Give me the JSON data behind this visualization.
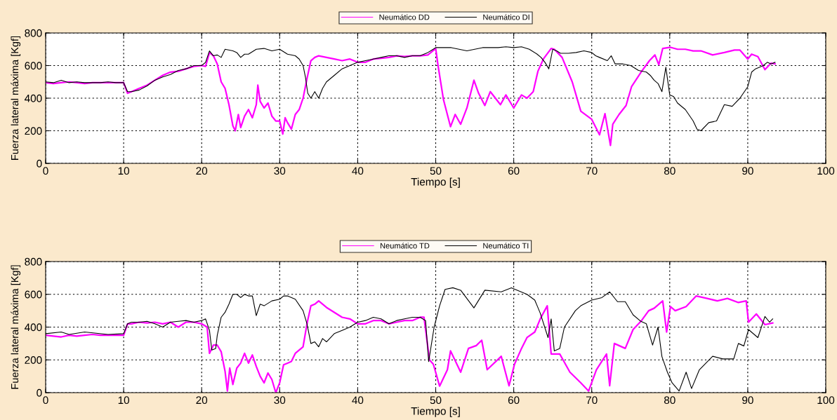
{
  "chart_data": [
    {
      "type": "line",
      "xlabel": "Tiempo [s]",
      "ylabel": "Fuerza lateral máxima [Kgf]",
      "xlim": [
        0,
        100
      ],
      "xticks": [
        0,
        10,
        20,
        30,
        40,
        50,
        60,
        70,
        80,
        90,
        100
      ],
      "ylim": [
        0,
        800
      ],
      "yticks": [
        0,
        200,
        400,
        600,
        800
      ],
      "grid": true,
      "legend": "top",
      "line_style": "solid",
      "series": [
        {
          "name": "Neumático DD",
          "color": "#ff00ff",
          "x": [
            0,
            1,
            2,
            3,
            4,
            5,
            6,
            7,
            8,
            9,
            10,
            10.5,
            11,
            12,
            13,
            14,
            15,
            16,
            17,
            18,
            19,
            20,
            20.5,
            21,
            21.5,
            22,
            22.5,
            23,
            23.5,
            24,
            24.3,
            24.7,
            25,
            25.5,
            26,
            26.5,
            27,
            27.2,
            27.5,
            28,
            28.5,
            29,
            29.5,
            30,
            30.4,
            30.7,
            31,
            31.5,
            32,
            32.5,
            33,
            33.5,
            34,
            34.5,
            35,
            36,
            37,
            38,
            39,
            40,
            41,
            42,
            43,
            44,
            45,
            46,
            47,
            48,
            49,
            50,
            50.3,
            51,
            51.9,
            52.5,
            53.2,
            54,
            54.9,
            55.5,
            56.3,
            57,
            58.3,
            59,
            60,
            61,
            61.7,
            62.5,
            63.1,
            63.8,
            64.8,
            65.2,
            66.2,
            67.5,
            68.6,
            70,
            71,
            71.7,
            72.4,
            72.7,
            73.5,
            74.4,
            75.1,
            76.4,
            77.4,
            78.1,
            78.6,
            79.1,
            80.1,
            81,
            82,
            83,
            84,
            85.5,
            87,
            88.3,
            89,
            90,
            90.5,
            91.3,
            92.2,
            93,
            93.5
          ],
          "values": [
            495,
            490,
            495,
            500,
            495,
            490,
            495,
            495,
            495,
            495,
            495,
            430,
            440,
            460,
            480,
            510,
            540,
            560,
            565,
            580,
            595,
            600,
            595,
            680,
            660,
            610,
            500,
            460,
            360,
            230,
            200,
            300,
            220,
            290,
            330,
            280,
            360,
            480,
            380,
            340,
            370,
            290,
            260,
            260,
            180,
            280,
            250,
            210,
            300,
            330,
            400,
            520,
            630,
            650,
            660,
            650,
            640,
            630,
            640,
            620,
            620,
            640,
            645,
            650,
            660,
            655,
            660,
            660,
            665,
            705,
            600,
            390,
            225,
            300,
            240,
            340,
            510,
            430,
            355,
            440,
            360,
            420,
            340,
            420,
            400,
            440,
            565,
            640,
            705,
            700,
            650,
            500,
            320,
            270,
            175,
            305,
            110,
            240,
            300,
            355,
            470,
            565,
            630,
            665,
            605,
            705,
            712,
            700,
            700,
            690,
            690,
            665,
            680,
            695,
            695,
            640,
            670,
            655,
            575,
            615,
            610
          ]
        },
        {
          "name": "Neumático DI",
          "color": "#000000",
          "x": [
            0,
            1,
            2,
            3,
            4,
            5,
            6,
            7,
            8,
            9,
            10,
            10.5,
            11,
            12,
            13,
            14,
            15,
            16,
            17,
            18,
            19,
            20,
            20.5,
            21,
            21.5,
            22,
            22.5,
            23,
            24,
            24.5,
            25,
            25.5,
            26,
            27,
            28,
            29,
            30,
            31,
            32,
            32.5,
            33,
            33.3,
            33.6,
            34,
            34.5,
            35,
            35.5,
            36,
            37,
            38,
            39,
            40,
            41,
            42,
            43,
            44,
            45,
            46,
            47,
            48,
            49,
            50,
            51,
            52,
            53,
            54,
            55,
            56,
            57,
            58,
            59,
            60,
            61,
            62,
            63,
            63.5,
            64,
            64.5,
            65,
            65.5,
            66,
            67,
            68,
            69,
            70,
            70.5,
            71,
            72,
            72.5,
            73,
            74,
            75,
            76,
            77,
            77.5,
            78,
            78.5,
            79,
            79.5,
            80,
            80.5,
            81,
            82,
            83,
            83.5,
            84,
            85,
            86,
            87,
            88,
            89,
            90,
            90.5,
            91,
            92,
            92.5,
            93,
            93.5
          ],
          "values": [
            500,
            495,
            510,
            495,
            500,
            495,
            495,
            495,
            500,
            495,
            495,
            440,
            440,
            450,
            475,
            510,
            530,
            545,
            570,
            580,
            600,
            600,
            620,
            690,
            660,
            665,
            650,
            700,
            690,
            680,
            650,
            670,
            670,
            700,
            705,
            690,
            700,
            670,
            660,
            640,
            600,
            530,
            430,
            400,
            440,
            400,
            460,
            500,
            540,
            580,
            600,
            620,
            630,
            640,
            650,
            660,
            660,
            650,
            660,
            660,
            680,
            710,
            710,
            710,
            700,
            690,
            700,
            710,
            710,
            710,
            715,
            710,
            715,
            700,
            670,
            650,
            620,
            580,
            700,
            690,
            675,
            675,
            680,
            690,
            680,
            660,
            650,
            630,
            660,
            610,
            610,
            600,
            570,
            560,
            540,
            510,
            490,
            440,
            590,
            420,
            410,
            370,
            330,
            260,
            210,
            200,
            250,
            260,
            360,
            350,
            400,
            470,
            560,
            580,
            600,
            620,
            610,
            620
          ]
        }
      ]
    },
    {
      "type": "line",
      "xlabel": "Tiempo [s]",
      "ylabel": "Fuerza lateral máxima [Kgf]",
      "xlim": [
        0,
        100
      ],
      "xticks": [
        0,
        10,
        20,
        30,
        40,
        50,
        60,
        70,
        80,
        90,
        100
      ],
      "ylim": [
        0,
        800
      ],
      "yticks": [
        0,
        200,
        400,
        600,
        800
      ],
      "grid": true,
      "legend": "top",
      "line_style": "solid",
      "series": [
        {
          "name": "Neumático TD",
          "color": "#ff00ff",
          "x": [
            0,
            1,
            2,
            3,
            4,
            5,
            6,
            7,
            8,
            9,
            10,
            10.5,
            11,
            12,
            13,
            14,
            15,
            16,
            17,
            18,
            19,
            20,
            20.7,
            21,
            21.5,
            22,
            22.5,
            23,
            23.3,
            23.6,
            24,
            24.5,
            25,
            25.5,
            26,
            26.5,
            27,
            27.5,
            28,
            28.5,
            29,
            29.5,
            30,
            30.5,
            31,
            31.5,
            32,
            33,
            33.5,
            34,
            34.5,
            35,
            36,
            37,
            38,
            39,
            40,
            41,
            42,
            43,
            44,
            45,
            46,
            47,
            48,
            48.5,
            49.2,
            49.7,
            50.5,
            51.5,
            51.9,
            53.2,
            54.2,
            55.2,
            55.9,
            56.6,
            58.4,
            59.4,
            60.1,
            61,
            61.7,
            62.7,
            63.4,
            64.3,
            64.8,
            65.9,
            67.2,
            68.6,
            69.6,
            70.6,
            71.9,
            72.3,
            72.9,
            74.3,
            75.3,
            76.3,
            77.3,
            78,
            79.1,
            79.6,
            80.1,
            80.7,
            82.1,
            83.4,
            84.8,
            86.1,
            87.4,
            88.8,
            89.8,
            90.1,
            91.1,
            92.2,
            93.2
          ],
          "values": [
            350,
            345,
            340,
            350,
            345,
            350,
            355,
            350,
            350,
            350,
            350,
            420,
            420,
            430,
            425,
            430,
            420,
            430,
            400,
            430,
            430,
            420,
            400,
            240,
            290,
            290,
            250,
            130,
            10,
            150,
            50,
            150,
            180,
            240,
            180,
            230,
            160,
            100,
            60,
            120,
            80,
            0,
            60,
            170,
            180,
            190,
            240,
            280,
            420,
            530,
            540,
            560,
            520,
            490,
            460,
            450,
            420,
            420,
            440,
            440,
            420,
            430,
            440,
            440,
            460,
            460,
            200,
            173,
            40,
            140,
            255,
            125,
            270,
            287,
            320,
            140,
            222,
            42,
            173,
            270,
            336,
            370,
            450,
            530,
            236,
            236,
            125,
            60,
            10,
            140,
            236,
            42,
            300,
            270,
            385,
            435,
            500,
            515,
            560,
            370,
            525,
            500,
            525,
            590,
            575,
            560,
            575,
            550,
            560,
            430,
            480,
            415,
            425
          ]
        },
        {
          "name": "Neumático TI",
          "color": "#000000",
          "x": [
            0,
            2,
            3,
            5,
            8,
            10,
            10.5,
            11,
            12,
            13,
            14,
            15,
            16,
            17,
            18,
            19,
            20,
            20.5,
            21,
            21.3,
            21.8,
            22,
            22.5,
            23,
            23.5,
            24,
            24.5,
            25,
            25.5,
            26,
            26.5,
            27,
            27.5,
            28,
            29,
            30,
            30.5,
            31,
            32,
            33,
            33.5,
            34,
            34.5,
            35,
            35.5,
            36,
            37,
            38,
            39,
            40,
            41,
            42,
            43,
            44,
            45,
            46,
            47,
            48,
            48.7,
            49.1,
            49.8,
            50.5,
            51.2,
            52.2,
            53.2,
            54.9,
            56.3,
            58.4,
            59.7,
            61.7,
            62.7,
            63.4,
            64.4,
            64.8,
            65.2,
            65.9,
            66.5,
            67.9,
            68.6,
            70,
            71.3,
            72.3,
            73.3,
            74.3,
            75.3,
            76.3,
            77,
            77.8,
            78.5,
            79,
            79.7,
            80.3,
            81.2,
            82.1,
            82.8,
            83.8,
            85.5,
            86.8,
            88.2,
            88.8,
            89.5,
            90.1,
            91.3,
            92.2,
            92.8,
            93.2
          ],
          "values": [
            360,
            370,
            355,
            370,
            355,
            360,
            420,
            430,
            430,
            435,
            420,
            400,
            430,
            435,
            440,
            430,
            440,
            450,
            380,
            260,
            270,
            350,
            460,
            490,
            540,
            600,
            600,
            580,
            600,
            590,
            590,
            470,
            540,
            530,
            560,
            570,
            590,
            590,
            570,
            500,
            420,
            300,
            310,
            280,
            330,
            310,
            360,
            380,
            400,
            430,
            440,
            460,
            450,
            420,
            440,
            450,
            460,
            460,
            440,
            190,
            400,
            530,
            630,
            640,
            625,
            517,
            625,
            615,
            640,
            600,
            565,
            485,
            336,
            450,
            255,
            270,
            400,
            500,
            530,
            565,
            580,
            615,
            555,
            555,
            475,
            435,
            420,
            290,
            400,
            220,
            125,
            60,
            10,
            125,
            25,
            140,
            222,
            206,
            206,
            300,
            285,
            385,
            336,
            465,
            430,
            450
          ]
        }
      ]
    }
  ]
}
